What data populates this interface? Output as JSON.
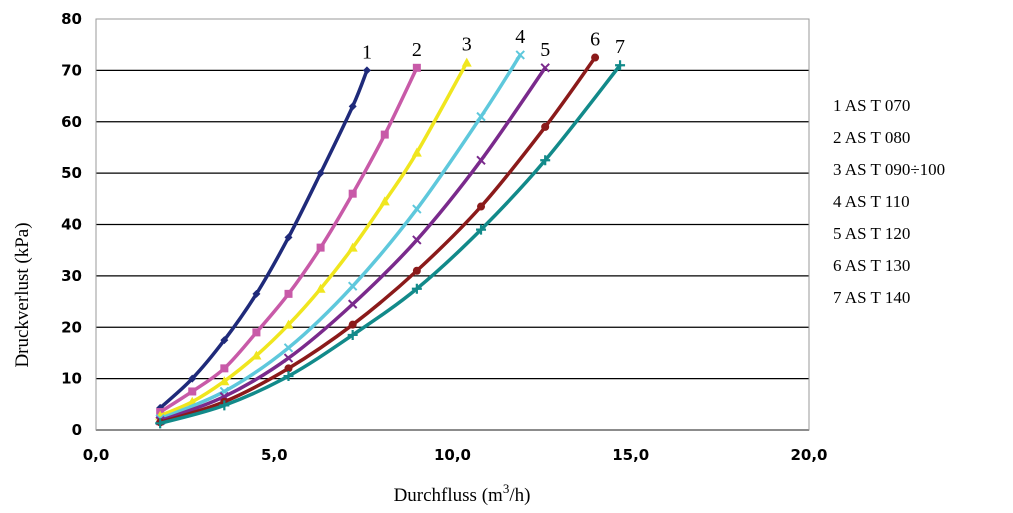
{
  "chart_data": {
    "type": "line",
    "title": "",
    "xlabel": "Durchfluss (m³/h)",
    "xlabel_parts": [
      "Durchfluss (m",
      "3",
      "/h)"
    ],
    "ylabel": "Druckverlust (kPa)",
    "xlim": [
      0,
      20
    ],
    "ylim": [
      0,
      80
    ],
    "x_ticks": [
      0,
      5,
      10,
      15,
      20
    ],
    "x_tick_labels": [
      "0,0",
      "5,0",
      "10,0",
      "15,0",
      "20,0"
    ],
    "y_ticks": [
      0,
      10,
      20,
      30,
      40,
      50,
      60,
      70,
      80
    ],
    "y_tick_labels": [
      "0",
      "10",
      "20",
      "30",
      "40",
      "50",
      "60",
      "70",
      "80"
    ],
    "grid": "horizontal",
    "legend_position": "right",
    "legend": [
      "1 AS T 070",
      "2 AS T 080",
      "3 AS T 090÷100",
      "4 AS T 110",
      "5 AS T 120",
      "6 AS T 130",
      "7 AS T 140"
    ],
    "series": [
      {
        "name": "1",
        "color": "#1f2a7a",
        "marker": "diamond",
        "x": [
          1.8,
          2.7,
          3.6,
          4.5,
          5.4,
          6.3,
          7.2,
          7.6
        ],
        "y": [
          4.3,
          10,
          17.5,
          26.5,
          37.5,
          50,
          63,
          70
        ]
      },
      {
        "name": "2",
        "color": "#c85aa8",
        "marker": "square",
        "x": [
          1.8,
          2.7,
          3.6,
          4.5,
          5.4,
          6.3,
          7.2,
          8.1,
          9.0
        ],
        "y": [
          3.5,
          7.5,
          12,
          19,
          26.5,
          35.5,
          46,
          57.5,
          70.5
        ]
      },
      {
        "name": "3",
        "color": "#f0e61e",
        "marker": "triangle",
        "x": [
          1.8,
          2.7,
          3.6,
          4.5,
          5.4,
          6.3,
          7.2,
          8.1,
          9.0,
          10.4
        ],
        "y": [
          2.8,
          5.5,
          9.5,
          14.5,
          20.5,
          27.5,
          35.5,
          44.5,
          54,
          71.5
        ]
      },
      {
        "name": "4",
        "color": "#5ec8dc",
        "marker": "x",
        "x": [
          1.8,
          3.6,
          5.4,
          7.2,
          9.0,
          10.8,
          11.9
        ],
        "y": [
          2.2,
          7.5,
          16,
          28,
          43,
          61,
          73
        ]
      },
      {
        "name": "5",
        "color": "#7a2a8c",
        "marker": "x",
        "x": [
          1.8,
          3.6,
          5.4,
          7.2,
          9.0,
          10.8,
          12.6
        ],
        "y": [
          1.8,
          6.5,
          14,
          24.5,
          37,
          52.5,
          70.5
        ]
      },
      {
        "name": "6",
        "color": "#8b1a1a",
        "marker": "circle",
        "x": [
          1.8,
          3.6,
          5.4,
          7.2,
          9.0,
          10.8,
          12.6,
          14.0
        ],
        "y": [
          1.5,
          5.5,
          12,
          20.5,
          31,
          43.5,
          59,
          72.5
        ]
      },
      {
        "name": "7",
        "color": "#128a8a",
        "marker": "plus",
        "x": [
          1.8,
          3.6,
          5.4,
          7.2,
          9.0,
          10.8,
          12.6,
          14.7
        ],
        "y": [
          1.3,
          4.8,
          10.5,
          18.5,
          27.5,
          39,
          52.5,
          71
        ]
      }
    ]
  }
}
